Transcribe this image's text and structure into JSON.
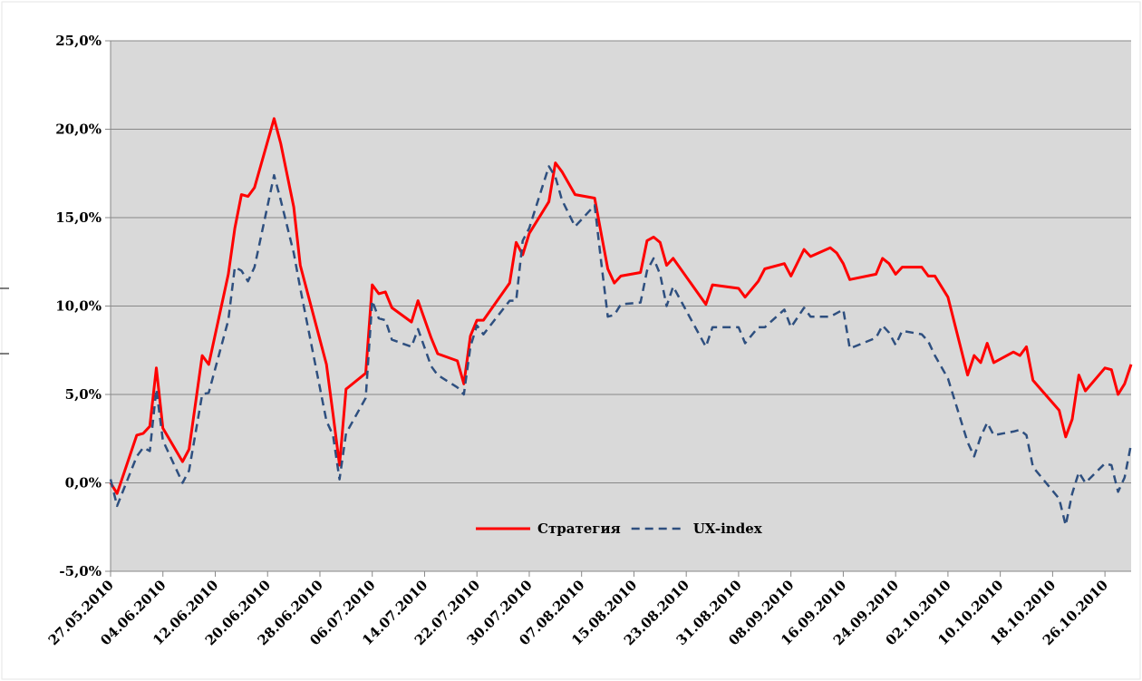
{
  "chart_data": {
    "type": "line",
    "x": [
      "27.05.2010",
      "28.05.2010",
      "31.05.2010",
      "01.06.2010",
      "02.06.2010",
      "03.06.2010",
      "04.06.2010",
      "07.06.2010",
      "08.06.2010",
      "10.06.2010",
      "11.06.2010",
      "14.06.2010",
      "15.06.2010",
      "16.06.2010",
      "17.06.2010",
      "18.06.2010",
      "21.06.2010",
      "22.06.2010",
      "24.06.2010",
      "25.06.2010",
      "29.06.2010",
      "30.06.2010",
      "01.07.2010",
      "02.07.2010",
      "05.07.2010",
      "06.07.2010",
      "07.07.2010",
      "08.07.2010",
      "09.07.2010",
      "12.07.2010",
      "13.07.2010",
      "15.07.2010",
      "16.07.2010",
      "19.07.2010",
      "20.07.2010",
      "21.07.2010",
      "22.07.2010",
      "23.07.2010",
      "27.07.2010",
      "28.07.2010",
      "29.07.2010",
      "30.07.2010",
      "02.08.2010",
      "03.08.2010",
      "04.08.2010",
      "06.08.2010",
      "09.08.2010",
      "10.08.2010",
      "11.08.2010",
      "12.08.2010",
      "13.08.2010",
      "16.08.2010",
      "17.08.2010",
      "18.08.2010",
      "19.08.2010",
      "20.08.2010",
      "21.08.2010",
      "26.08.2010",
      "27.08.2010",
      "31.08.2010",
      "01.09.2010",
      "03.09.2010",
      "04.09.2010",
      "07.09.2010",
      "08.09.2010",
      "10.09.2010",
      "11.09.2010",
      "14.09.2010",
      "15.09.2010",
      "16.09.2010",
      "17.09.2010",
      "21.09.2010",
      "22.09.2010",
      "23.09.2010",
      "24.09.2010",
      "25.09.2010",
      "28.09.2010",
      "29.09.2010",
      "30.09.2010",
      "02.10.2010",
      "05.10.2010",
      "06.10.2010",
      "07.10.2010",
      "08.10.2010",
      "09.10.2010",
      "12.10.2010",
      "13.10.2010",
      "14.10.2010",
      "15.10.2010",
      "19.10.2010",
      "20.10.2010",
      "21.10.2010",
      "22.10.2010",
      "23.10.2010",
      "26.10.2010",
      "27.10.2010",
      "28.10.2010",
      "29.10.2010",
      "30.10.2010"
    ],
    "series": [
      {
        "name": "Стратегия",
        "color": "#ff0000",
        "dashed": false,
        "values": [
          0,
          -0.6,
          2.7,
          2.8,
          3.2,
          6.5,
          3.1,
          1.2,
          1.9,
          7.2,
          6.7,
          11.8,
          14.4,
          16.3,
          16.2,
          16.7,
          20.6,
          19.2,
          15.6,
          12.3,
          6.7,
          3.9,
          1.0,
          5.3,
          6.2,
          11.2,
          10.7,
          10.8,
          9.9,
          9.1,
          10.3,
          8.2,
          7.3,
          6.9,
          5.6,
          8.3,
          9.2,
          9.2,
          11.3,
          13.6,
          12.9,
          14.1,
          15.9,
          18.1,
          17.6,
          16.3,
          16.1,
          14.1,
          12.1,
          11.3,
          11.7,
          11.9,
          13.7,
          13.9,
          13.6,
          12.3,
          12.7,
          10.1,
          11.2,
          11.0,
          10.5,
          11.4,
          12.1,
          12.4,
          11.7,
          13.2,
          12.8,
          13.3,
          13.0,
          12.4,
          11.5,
          11.8,
          12.7,
          12.4,
          11.8,
          12.2,
          12.2,
          11.7,
          11.7,
          10.5,
          6.1,
          7.2,
          6.8,
          7.9,
          6.8,
          7.4,
          7.2,
          7.7,
          5.8,
          4.1,
          2.6,
          3.6,
          6.1,
          5.2,
          6.5,
          6.4,
          5.0,
          5.6,
          6.7
        ]
      },
      {
        "name": "UX-index",
        "color": "#2e4f7f",
        "dashed": true,
        "values": [
          0.2,
          -1.3,
          1.5,
          2.0,
          1.8,
          5.3,
          2.4,
          0.0,
          0.7,
          5.0,
          5.1,
          9.2,
          12.2,
          12.0,
          11.4,
          12.2,
          17.4,
          16.0,
          13.0,
          11.0,
          3.5,
          2.7,
          0.2,
          2.8,
          4.8,
          10.3,
          9.3,
          9.2,
          8.1,
          7.7,
          8.7,
          6.6,
          6.1,
          5.4,
          5.0,
          7.7,
          8.9,
          8.4,
          10.3,
          10.3,
          13.7,
          14.4,
          17.9,
          17.3,
          16.0,
          14.5,
          15.7,
          12.5,
          9.4,
          9.5,
          10.1,
          10.2,
          12.0,
          12.7,
          11.8,
          10.0,
          11.1,
          7.7,
          8.8,
          8.8,
          7.9,
          8.8,
          8.8,
          9.8,
          8.8,
          9.9,
          9.4,
          9.4,
          9.6,
          9.8,
          7.6,
          8.2,
          8.9,
          8.5,
          7.8,
          8.6,
          8.4,
          8.0,
          7.2,
          5.9,
          2.3,
          1.5,
          2.6,
          3.4,
          2.7,
          2.9,
          3.0,
          2.7,
          0.9,
          -0.9,
          -2.4,
          -0.6,
          0.6,
          0.0,
          1.1,
          1.0,
          -0.5,
          0.3,
          2.2
        ]
      }
    ],
    "xlim": [
      "27.05.2010",
      "30.10.2010"
    ],
    "xticks": [
      "27.05.2010",
      "04.06.2010",
      "12.06.2010",
      "20.06.2010",
      "28.06.2010",
      "06.07.2010",
      "14.07.2010",
      "22.07.2010",
      "30.07.2010",
      "07.08.2010",
      "15.08.2010",
      "23.08.2010",
      "31.08.2010",
      "08.09.2010",
      "16.09.2010",
      "24.09.2010",
      "02.10.2010",
      "10.10.2010",
      "18.10.2010",
      "26.10.2010"
    ],
    "ylim": [
      -5,
      25
    ],
    "yticks": [
      {
        "value": -5,
        "label": "-5,0%"
      },
      {
        "value": 0,
        "label": "0,0%"
      },
      {
        "value": 5,
        "label": "5,0%"
      },
      {
        "value": 10,
        "label": "10,0%"
      },
      {
        "value": 15,
        "label": "15,0%"
      },
      {
        "value": 20,
        "label": "20,0%"
      },
      {
        "value": 25,
        "label": "25,0%"
      }
    ],
    "grid": true,
    "legend": "bottom"
  }
}
